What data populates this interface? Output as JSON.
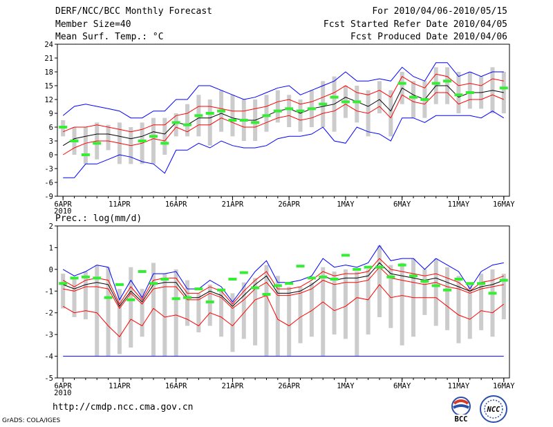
{
  "header": {
    "title": "DERF/NCC/BCC Monthly Forecast",
    "member_size": "Member Size=40",
    "variable": "Mean Surf. Temp.: °C",
    "period": "For 2010/04/06-2010/05/15",
    "started": "Fcst Started Refer Date 2010/04/05",
    "produced": "Fcst Produced Date 2010/04/06"
  },
  "prec_title": "Prec.: log(mm/d)",
  "footer": {
    "url": "http://cmdp.ncc.cma.gov.cn",
    "grads": "GrADS: COLA/IGES",
    "logo_bcc_text": "BCC",
    "logo_ncc_text": "NCC"
  },
  "colors": {
    "upper": "#0000ff",
    "spread": "#ff0000",
    "mean": "#000000",
    "obs": "#33ee33",
    "bar": "#cccccc",
    "background": "#ffffff"
  },
  "chart_data": [
    {
      "type": "line",
      "title": "Mean Surf. Temp.: °C",
      "xlabel": "",
      "ylabel": "°C",
      "x": [
        0,
        1,
        2,
        3,
        4,
        5,
        6,
        7,
        8,
        9,
        10,
        11,
        12,
        13,
        14,
        15,
        16,
        17,
        18,
        19,
        20,
        21,
        22,
        23,
        24,
        25,
        26,
        27,
        28,
        29,
        30,
        31,
        32,
        33,
        34,
        35,
        36,
        37,
        38,
        39
      ],
      "xticks": [
        {
          "x": 0,
          "label": "6APR",
          "sub": "2010"
        },
        {
          "x": 5,
          "label": "11APR"
        },
        {
          "x": 10,
          "label": "16APR"
        },
        {
          "x": 15,
          "label": "21APR"
        },
        {
          "x": 20,
          "label": "26APR"
        },
        {
          "x": 25,
          "label": "1MAY"
        },
        {
          "x": 30,
          "label": "6MAY"
        },
        {
          "x": 35,
          "label": "11MAY"
        },
        {
          "x": 39,
          "label": "16MAY"
        }
      ],
      "yticks": [
        -9,
        -6,
        -3,
        0,
        3,
        6,
        9,
        12,
        15,
        18,
        21,
        24
      ],
      "ylim": [
        -9,
        24
      ],
      "series": [
        {
          "name": "max",
          "color": "#0000ff",
          "values": [
            8.5,
            10.5,
            11,
            10.5,
            10,
            9.5,
            8,
            8,
            9.5,
            9.5,
            12,
            12,
            15,
            15,
            14,
            13,
            12,
            12.5,
            13.5,
            14.5,
            15,
            13,
            14,
            15,
            16,
            18,
            16,
            16,
            16.5,
            16,
            19,
            17,
            16,
            20,
            20,
            17,
            18,
            17,
            18,
            18
          ]
        },
        {
          "name": "upper",
          "color": "#ff0000",
          "values": [
            5,
            6,
            6,
            6.5,
            6,
            5.5,
            5,
            5.5,
            6.5,
            6.5,
            8.5,
            9,
            10.5,
            10.5,
            10,
            9.5,
            9.5,
            10,
            10.5,
            11.5,
            12,
            11,
            11.5,
            12.5,
            13.5,
            15,
            13.5,
            13,
            14,
            12.5,
            17,
            15.5,
            14.5,
            17.5,
            17,
            15,
            15.5,
            15,
            16.5,
            16
          ]
        },
        {
          "name": "mean",
          "color": "#000000",
          "values": [
            2,
            3.5,
            4,
            4.5,
            4.5,
            4,
            3.5,
            4,
            5,
            4.5,
            7,
            6.5,
            8,
            8,
            9,
            8,
            7.5,
            7.5,
            8.5,
            9.5,
            10,
            9,
            10,
            10.5,
            11,
            12.5,
            11.5,
            10.5,
            12,
            9.5,
            14.5,
            13,
            12,
            15,
            15,
            12.5,
            13.5,
            13.5,
            14,
            13.5
          ]
        },
        {
          "name": "lower",
          "color": "#ff0000",
          "values": [
            0,
            1.5,
            2.5,
            3,
            3,
            2.5,
            2,
            2.5,
            3.5,
            3,
            6,
            5,
            6.5,
            6.5,
            8,
            7,
            6,
            6,
            7,
            8,
            8.5,
            7.5,
            8,
            9,
            9.5,
            11,
            9.5,
            9,
            10.5,
            8,
            13,
            11.5,
            11,
            13.5,
            13.5,
            11,
            12,
            12,
            13,
            12
          ]
        },
        {
          "name": "min",
          "color": "#0000ff",
          "values": [
            -5,
            -5,
            -2,
            -2,
            -1,
            0,
            -0.5,
            -1.5,
            -2,
            -4,
            1,
            1,
            2.5,
            1.5,
            3,
            2,
            1.5,
            1.5,
            2,
            3.5,
            4,
            4,
            4.5,
            6,
            3,
            2.5,
            6,
            5,
            4.5,
            3,
            8,
            8,
            7,
            8.5,
            8.5,
            8.5,
            8.5,
            8,
            9.5,
            8
          ]
        }
      ],
      "bars": [
        [
          4,
          7.5
        ],
        [
          0,
          6
        ],
        [
          -2,
          6
        ],
        [
          -1,
          7
        ],
        [
          1,
          6.5
        ],
        [
          -2,
          7
        ],
        [
          -2,
          6
        ],
        [
          -2,
          7
        ],
        [
          -2,
          8
        ],
        [
          0,
          8
        ],
        [
          4,
          9
        ],
        [
          4,
          11
        ],
        [
          4,
          13
        ],
        [
          2,
          12
        ],
        [
          5,
          14
        ],
        [
          4,
          13
        ],
        [
          3,
          12
        ],
        [
          3,
          12
        ],
        [
          5,
          13
        ],
        [
          7,
          14
        ],
        [
          6,
          13
        ],
        [
          5,
          12
        ],
        [
          6,
          14
        ],
        [
          6,
          16
        ],
        [
          5,
          17
        ],
        [
          8,
          15
        ],
        [
          7,
          15
        ],
        [
          4,
          14
        ],
        [
          9,
          16
        ],
        [
          4,
          14
        ],
        [
          11,
          18
        ],
        [
          8,
          16
        ],
        [
          8,
          16
        ],
        [
          11,
          19
        ],
        [
          11,
          19
        ],
        [
          9,
          18
        ],
        [
          10,
          18
        ],
        [
          10,
          17
        ],
        [
          9,
          19
        ],
        [
          9,
          18
        ]
      ],
      "obs": [
        6,
        3,
        0,
        2.5,
        null,
        null,
        null,
        3,
        4,
        2.5,
        7,
        6.5,
        8.5,
        9,
        9.5,
        7.5,
        7.5,
        7,
        8.5,
        9.5,
        10,
        9.5,
        10,
        11,
        12.5,
        11.5,
        11.5,
        null,
        null,
        null,
        15.5,
        12.5,
        12,
        15.5,
        16,
        13,
        13.5,
        null,
        null,
        14.5
      ]
    },
    {
      "type": "line",
      "title": "Prec.: log(mm/d)",
      "xlabel": "",
      "ylabel": "log(mm/d)",
      "x": [
        0,
        1,
        2,
        3,
        4,
        5,
        6,
        7,
        8,
        9,
        10,
        11,
        12,
        13,
        14,
        15,
        16,
        17,
        18,
        19,
        20,
        21,
        22,
        23,
        24,
        25,
        26,
        27,
        28,
        29,
        30,
        31,
        32,
        33,
        34,
        35,
        36,
        37,
        38,
        39
      ],
      "xticks": [
        {
          "x": 0,
          "label": "6APR",
          "sub": "2010"
        },
        {
          "x": 5,
          "label": "11APR"
        },
        {
          "x": 10,
          "label": "16APR"
        },
        {
          "x": 15,
          "label": "21APR"
        },
        {
          "x": 20,
          "label": "26APR"
        },
        {
          "x": 25,
          "label": "1MAY"
        },
        {
          "x": 30,
          "label": "6MAY"
        },
        {
          "x": 35,
          "label": "11MAY"
        },
        {
          "x": 39,
          "label": "16MAY"
        }
      ],
      "yticks": [
        -5,
        -4,
        -3,
        -2,
        -1,
        0,
        1,
        2
      ],
      "ylim": [
        -5,
        2
      ],
      "series": [
        {
          "name": "max",
          "color": "#0000ff",
          "values": [
            0,
            -0.3,
            -0.1,
            0.2,
            0.1,
            -1.4,
            -0.5,
            -1.3,
            -0.2,
            -0.2,
            -0.1,
            -0.9,
            -0.9,
            -0.5,
            -0.8,
            -1.5,
            -0.8,
            -0.1,
            0.4,
            -0.6,
            -0.6,
            -0.5,
            -0.3,
            0.5,
            0.1,
            0.2,
            0.1,
            0.3,
            1.1,
            0.4,
            0.5,
            0.5,
            0,
            0.5,
            0.2,
            -0.1,
            -0.9,
            -0.1,
            0.2,
            0.3
          ]
        },
        {
          "name": "upper",
          "color": "#ff0000",
          "values": [
            -0.5,
            -0.8,
            -0.5,
            -0.4,
            -0.5,
            -1.6,
            -0.8,
            -1.4,
            -0.5,
            -0.4,
            -0.4,
            -1.1,
            -1.1,
            -0.8,
            -1,
            -1.6,
            -1,
            -0.5,
            -0.1,
            -0.9,
            -0.9,
            -0.8,
            -0.5,
            -0.1,
            -0.3,
            -0.2,
            -0.2,
            -0.1,
            0.5,
            0,
            -0.1,
            -0.2,
            -0.3,
            -0.2,
            -0.4,
            -0.6,
            -1,
            -0.6,
            -0.5,
            -0.3
          ]
        },
        {
          "name": "mean",
          "color": "#000000",
          "values": [
            -0.7,
            -0.9,
            -0.7,
            -0.6,
            -0.7,
            -1.7,
            -1,
            -1.5,
            -0.7,
            -0.6,
            -0.6,
            -1.3,
            -1.3,
            -1,
            -1.2,
            -1.7,
            -1.2,
            -0.7,
            -0.3,
            -1.1,
            -1.1,
            -1,
            -0.7,
            -0.3,
            -0.5,
            -0.4,
            -0.4,
            -0.3,
            0.3,
            -0.2,
            -0.3,
            -0.4,
            -0.5,
            -0.4,
            -0.6,
            -0.8,
            -1,
            -0.8,
            -0.7,
            -0.5
          ]
        },
        {
          "name": "lower",
          "color": "#ff0000",
          "values": [
            -0.9,
            -1,
            -0.8,
            -0.8,
            -0.9,
            -1.8,
            -1.1,
            -1.6,
            -0.9,
            -0.8,
            -0.8,
            -1.4,
            -1.4,
            -1.1,
            -1.3,
            -1.8,
            -1.4,
            -0.9,
            -0.6,
            -1.2,
            -1.2,
            -1.1,
            -0.9,
            -0.5,
            -0.7,
            -0.6,
            -0.6,
            -0.5,
            0.1,
            -0.4,
            -0.5,
            -0.6,
            -0.7,
            -0.6,
            -0.8,
            -0.9,
            -1.1,
            -0.9,
            -0.8,
            -0.7
          ]
        },
        {
          "name": "min",
          "color": "#0000ff",
          "values": [
            -4,
            -4,
            -4,
            -4,
            -4,
            -4,
            -4,
            -4,
            -4,
            -4,
            -4,
            -4,
            -4,
            -4,
            -4,
            -4,
            -4,
            -4,
            -4,
            -4,
            -4,
            -4,
            -4,
            -4,
            -4,
            -4,
            -4,
            -4,
            -4,
            -4,
            -4,
            -4,
            -4,
            -4,
            -4,
            -4,
            -4,
            -4,
            -4,
            -4
          ]
        },
        {
          "name": "low",
          "color": "#ff0000",
          "values": [
            -1.7,
            -2,
            -1.9,
            -2,
            -2.6,
            -3.1,
            -2.3,
            -2.6,
            -1.8,
            -2.2,
            -2.1,
            -2.3,
            -2.6,
            -2,
            -2.2,
            -2.6,
            -2,
            -1.4,
            -1.2,
            -2.3,
            -2.6,
            -2.2,
            -1.9,
            -1.5,
            -1.9,
            -1.7,
            -1.3,
            -1.4,
            -0.7,
            -1.3,
            -1.2,
            -1.3,
            -1.3,
            -1.3,
            -1.7,
            -2.1,
            -2.3,
            -1.9,
            -2,
            -1.6
          ]
        }
      ],
      "bars": [
        [
          -1.8,
          -0.2
        ],
        [
          -2.2,
          -0.4
        ],
        [
          -2.3,
          -0.1
        ],
        [
          -4,
          0.2
        ],
        [
          -4,
          0.1
        ],
        [
          -3.9,
          -0.9
        ],
        [
          -3.6,
          0.1
        ],
        [
          -3.1,
          -0.9
        ],
        [
          -4,
          0.3
        ],
        [
          -4,
          -0.2
        ],
        [
          -4,
          0
        ],
        [
          -2.6,
          -0.5
        ],
        [
          -2.9,
          -1.1
        ],
        [
          -2.6,
          -0.7
        ],
        [
          -3.1,
          -0.9
        ],
        [
          -3.8,
          -1.1
        ],
        [
          -3.2,
          -0.6
        ],
        [
          -3.5,
          -0.4
        ],
        [
          -4,
          0.2
        ],
        [
          -4,
          -0.3
        ],
        [
          -4,
          -0.8
        ],
        [
          -3.4,
          -0.8
        ],
        [
          -3.1,
          -0.6
        ],
        [
          -4,
          0.1
        ],
        [
          -3,
          -0.1
        ],
        [
          -3.2,
          0
        ],
        [
          -4,
          -0.1
        ],
        [
          -3,
          0
        ],
        [
          -2.2,
          1.1
        ],
        [
          -2.7,
          0.2
        ],
        [
          -3.5,
          0.3
        ],
        [
          -3.1,
          0.5
        ],
        [
          -2.1,
          0
        ],
        [
          -2.6,
          0.5
        ],
        [
          -2.8,
          0.1
        ],
        [
          -3.4,
          -0.3
        ],
        [
          -3.2,
          -0.6
        ],
        [
          -2.8,
          -0.2
        ],
        [
          -3.1,
          0
        ],
        [
          -2.3,
          -0.2
        ]
      ],
      "obs": [
        -0.65,
        -0.4,
        -0.35,
        -0.4,
        -1.3,
        -0.7,
        -1.4,
        -0.1,
        -0.65,
        -0.45,
        -1.35,
        -1.3,
        -0.9,
        -1.5,
        -0.95,
        -0.45,
        -0.15,
        -0.85,
        -1.15,
        -0.75,
        -0.65,
        0.15,
        -0.4,
        -0.35,
        -0.45,
        0.65,
        0,
        0.1,
        0.1,
        -0.35,
        0.2,
        -0.3,
        -0.55,
        -0.75,
        -0.95,
        -0.45,
        -0.65,
        -0.65,
        -1.1,
        -0.5
      ]
    }
  ]
}
